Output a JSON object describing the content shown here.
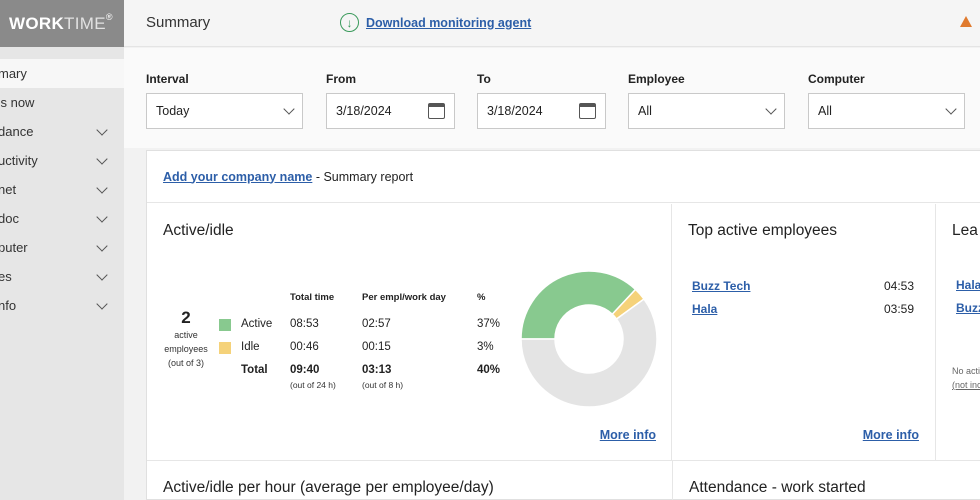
{
  "sidebar": {
    "logo_bold": "WORK",
    "logo_light": "TIME",
    "logo_mark": "®",
    "items": [
      {
        "label": "mary",
        "active": true,
        "expandable": false
      },
      {
        "label": "'s now",
        "active": false,
        "expandable": false
      },
      {
        "label": "dance",
        "active": false,
        "expandable": true
      },
      {
        "label": "uctivity",
        "active": false,
        "expandable": true
      },
      {
        "label": "net",
        "active": false,
        "expandable": true
      },
      {
        "label": "doc",
        "active": false,
        "expandable": true
      },
      {
        "label": "puter",
        "active": false,
        "expandable": true
      },
      {
        "label": "es",
        "active": false,
        "expandable": true
      },
      {
        "label": "nfo",
        "active": false,
        "expandable": true
      }
    ]
  },
  "header": {
    "title": "Summary",
    "download_label": "Download monitoring agent",
    "download_icon": "download-circle-icon",
    "warning_icon": "warning-icon",
    "warning_color": "#e07a2e"
  },
  "filters": {
    "interval": {
      "label": "Interval",
      "value": "Today"
    },
    "from": {
      "label": "From",
      "value": "3/18/2024"
    },
    "to": {
      "label": "To",
      "value": "3/18/2024"
    },
    "employee": {
      "label": "Employee",
      "value": "All"
    },
    "computer": {
      "label": "Computer",
      "value": "All"
    }
  },
  "report": {
    "company_link": "Add your company name",
    "suffix": " - Summary report",
    "active_idle": {
      "title": "Active/idle",
      "count": "2",
      "count_line1": "active",
      "count_line2": "employees",
      "count_line3": "(out of 3)",
      "headers": {
        "total": "Total time",
        "per": "Per empl/work day",
        "pct": "%"
      },
      "rows": [
        {
          "label": "Active",
          "total": "08:53",
          "per": "02:57",
          "pct": "37%",
          "color": "#88c98f"
        },
        {
          "label": "Idle",
          "total": "00:46",
          "per": "00:15",
          "pct": "3%",
          "color": "#f5d27a"
        }
      ],
      "total_row": {
        "label": "Total",
        "total": "09:40",
        "total_sub": "(out of 24 h)",
        "per": "03:13",
        "per_sub": "(out of 8 h)",
        "pct": "40%"
      },
      "more": "More info"
    },
    "donut": {
      "active": 37,
      "idle": 3,
      "none": 60,
      "active_color": "#88c98f",
      "idle_color": "#f5d27a",
      "none_color": "#e4e4e4"
    },
    "top_active": {
      "title": "Top active employees",
      "rows": [
        {
          "name": "Buzz Tech",
          "time": "04:53"
        },
        {
          "name": "Hala",
          "time": "03:59"
        }
      ],
      "more": "More info"
    },
    "least": {
      "title": "Lea",
      "rows": [
        "Hala",
        "Buzz"
      ],
      "note1": "No acti",
      "note2": "(not inc"
    },
    "bottom_left_title": "Active/idle per hour (average per employee/day)",
    "bottom_right_title": "Attendance - work started"
  }
}
